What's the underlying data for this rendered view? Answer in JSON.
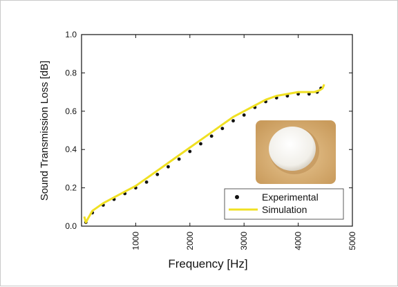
{
  "chart_data": {
    "type": "line",
    "xlabel": "Frequency [Hz]",
    "ylabel": "Sound Transmission Loss [dB]",
    "xlim": [
      0,
      5000
    ],
    "ylim": [
      0.0,
      1.0
    ],
    "xticks": [
      1000,
      2000,
      3000,
      4000,
      5000
    ],
    "xtick_labels": [
      "1000",
      "2000",
      "3000",
      "4000",
      "5000"
    ],
    "yticks": [
      0.0,
      0.2,
      0.4,
      0.6,
      0.8,
      1.0
    ],
    "ytick_labels": [
      "0.0",
      "0.2",
      "0.4",
      "0.6",
      "0.8",
      "1.0"
    ],
    "grid": false,
    "legend_position": "bottom-right",
    "inset": {
      "description": "photo of circular sample",
      "position": "right-middle"
    },
    "series": [
      {
        "name": "Experimental",
        "style": "markers",
        "color": "#000000",
        "x": [
          80,
          200,
          400,
          600,
          800,
          1000,
          1200,
          1400,
          1600,
          1800,
          2000,
          2200,
          2400,
          2600,
          2800,
          3000,
          3200,
          3400,
          3600,
          3800,
          4000,
          4200,
          4350,
          4420
        ],
        "y": [
          0.02,
          0.07,
          0.11,
          0.14,
          0.17,
          0.2,
          0.23,
          0.27,
          0.31,
          0.35,
          0.39,
          0.43,
          0.47,
          0.51,
          0.55,
          0.58,
          0.62,
          0.65,
          0.67,
          0.68,
          0.69,
          0.69,
          0.7,
          0.72
        ]
      },
      {
        "name": "Simulation",
        "style": "line",
        "color": "#f0e022",
        "x": [
          50,
          80,
          120,
          200,
          400,
          600,
          800,
          1000,
          1200,
          1400,
          1600,
          1800,
          2000,
          2200,
          2400,
          2600,
          2800,
          3000,
          3200,
          3400,
          3600,
          3800,
          4000,
          4200,
          4300,
          4400,
          4450,
          4480
        ],
        "y": [
          0.05,
          0.02,
          0.04,
          0.08,
          0.12,
          0.15,
          0.18,
          0.21,
          0.25,
          0.29,
          0.33,
          0.37,
          0.41,
          0.45,
          0.49,
          0.53,
          0.57,
          0.6,
          0.63,
          0.66,
          0.68,
          0.69,
          0.7,
          0.7,
          0.7,
          0.71,
          0.72,
          0.74
        ]
      }
    ]
  }
}
